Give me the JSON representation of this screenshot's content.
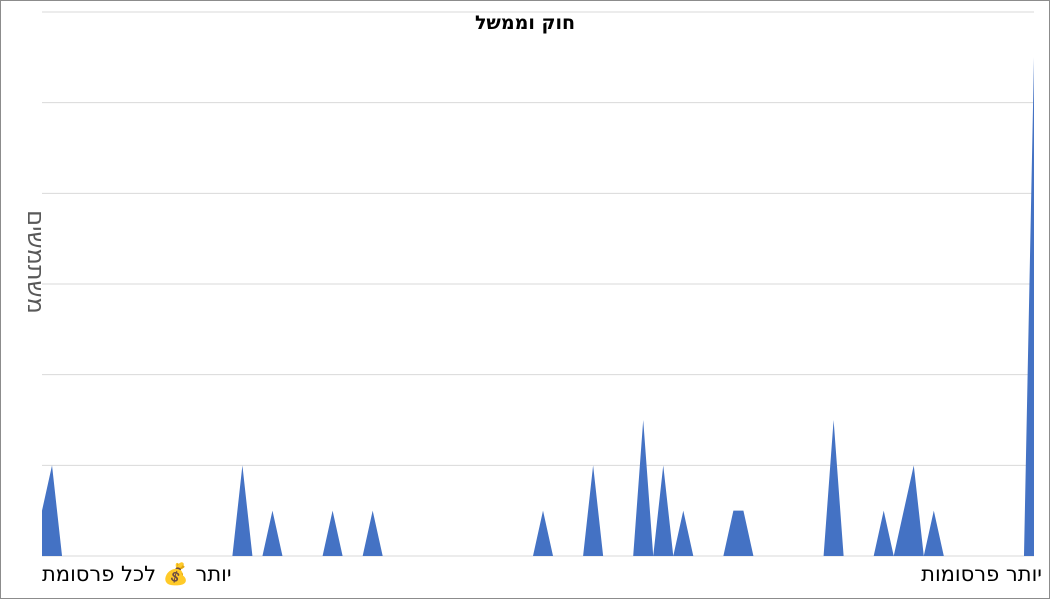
{
  "chart_data": {
    "type": "area",
    "title": "חוק וממשל",
    "ylabel": "משתמשים",
    "xlabel_left": "יותר 💰 לכל פרסומת",
    "xlabel_right": "יותר פרסומות",
    "grid": true,
    "legend": "none",
    "ylim": [
      0,
      12
    ],
    "color": "#4472C4",
    "x_count": 100,
    "x": [
      0,
      1,
      2,
      19,
      20,
      21,
      22,
      23,
      24,
      25,
      28,
      29,
      30,
      32,
      33,
      34,
      49,
      50,
      51,
      54,
      55,
      56,
      59,
      60,
      61,
      62,
      63,
      64,
      65,
      68,
      69,
      70,
      71,
      78,
      79,
      80,
      83,
      84,
      85,
      86,
      87,
      88,
      89,
      90,
      91,
      98,
      99
    ],
    "values": [
      1,
      2,
      0,
      0,
      2,
      0,
      0,
      1,
      0,
      0,
      0,
      1,
      0,
      0,
      1,
      0,
      0,
      1,
      0,
      0,
      2,
      0,
      0,
      3,
      0,
      2,
      0,
      1,
      0,
      0,
      1,
      1,
      0,
      0,
      3,
      0,
      0,
      1,
      0,
      1,
      2,
      0,
      1,
      0,
      0,
      0,
      11
    ]
  }
}
